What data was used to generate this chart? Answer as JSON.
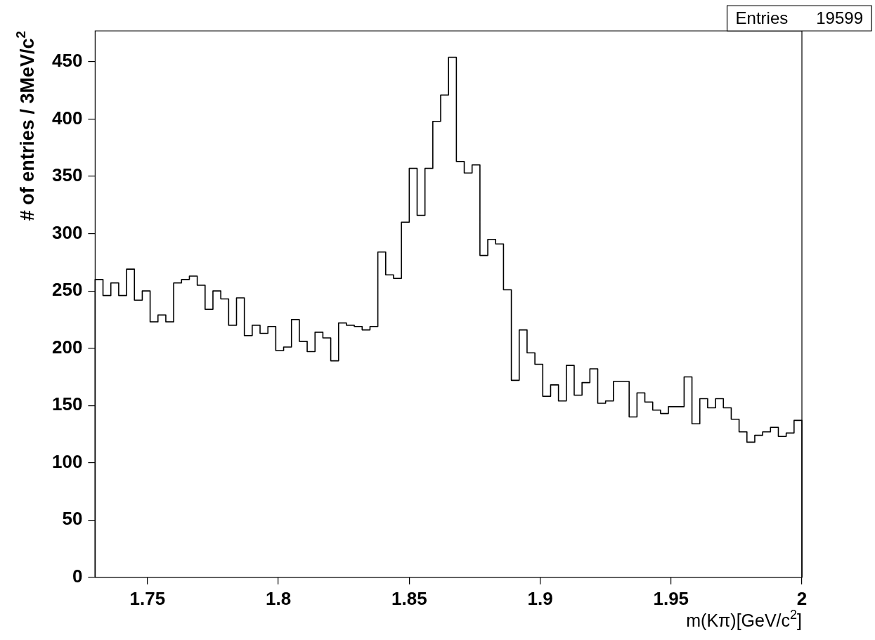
{
  "chart_data": {
    "type": "histogram",
    "xlabel": "m(Kπ)[GeV/c$^{2}$]",
    "ylabel": "# of entries / 3MeV/c$^{2}$",
    "annotations": [
      "Entries      19599"
    ],
    "bins": [
      1.73,
      1.733,
      1.736,
      1.739,
      1.742,
      1.745,
      1.748,
      1.751,
      1.754,
      1.757,
      1.76,
      1.763,
      1.766,
      1.769,
      1.772,
      1.775,
      1.778,
      1.781,
      1.784,
      1.787,
      1.79,
      1.793,
      1.796,
      1.799,
      1.802,
      1.805,
      1.808,
      1.811,
      1.814,
      1.817,
      1.82,
      1.823,
      1.826,
      1.829,
      1.832,
      1.835,
      1.838,
      1.841,
      1.844,
      1.847,
      1.85,
      1.853,
      1.856,
      1.859,
      1.862,
      1.865,
      1.868,
      1.871,
      1.874,
      1.877,
      1.88,
      1.883,
      1.886,
      1.889,
      1.892,
      1.895,
      1.898,
      1.901,
      1.904,
      1.907,
      1.91,
      1.913,
      1.916,
      1.919,
      1.922,
      1.925,
      1.928,
      1.931,
      1.934,
      1.937,
      1.94,
      1.943,
      1.946,
      1.949,
      1.952,
      1.955,
      1.958,
      1.961,
      1.964,
      1.967,
      1.97,
      1.973,
      1.976,
      1.979,
      1.982,
      1.985,
      1.988,
      1.991,
      1.994,
      1.997,
      2.0
    ],
    "values": [
      260,
      246,
      257,
      246,
      269,
      242,
      250,
      223,
      229,
      223,
      257,
      260,
      263,
      255,
      234,
      250,
      243,
      220,
      244,
      211,
      220,
      213,
      219,
      198,
      201,
      225,
      206,
      197,
      214,
      209,
      189,
      222,
      220,
      219,
      216,
      219,
      284,
      264,
      261,
      310,
      357,
      316,
      357,
      398,
      421,
      454,
      363,
      353,
      360,
      281,
      295,
      291,
      251,
      172,
      216,
      196,
      186,
      158,
      168,
      154,
      185,
      159,
      170,
      182,
      152,
      154,
      171,
      171,
      140,
      161,
      153,
      146,
      143,
      149,
      149,
      175,
      134,
      156,
      148,
      156,
      148,
      138,
      127,
      118,
      124,
      127,
      131,
      123,
      126,
      137
    ],
    "color": "#000000",
    "xlim": [
      1.73,
      2.0
    ],
    "ylim": [
      0,
      477
    ],
    "xticks": [
      1.75,
      1.8,
      1.85,
      1.9,
      1.95,
      2
    ],
    "yticks": [
      0,
      50,
      100,
      150,
      200,
      250,
      300,
      350,
      400,
      450
    ]
  }
}
